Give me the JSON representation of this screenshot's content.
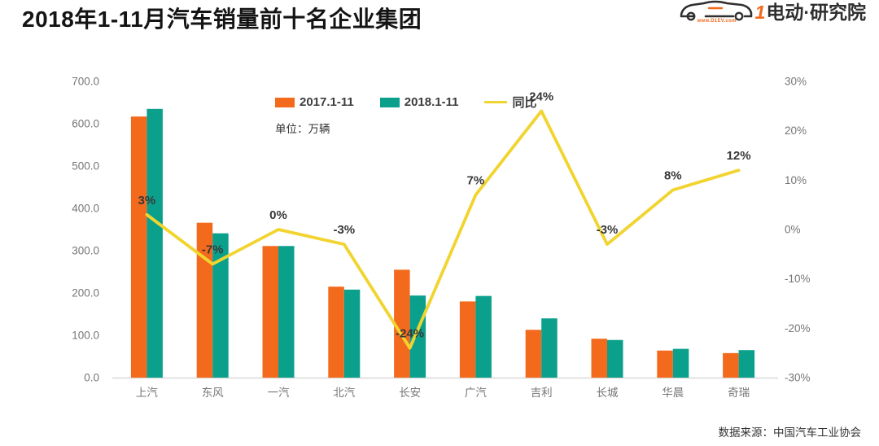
{
  "title": "2018年1-11月汽车销量前十名企业集团",
  "logo": {
    "brand_one": "1",
    "brand_text": "电动",
    "separator": "·",
    "suffix": "研究院",
    "url": "www.D1EV.com"
  },
  "legend": {
    "unit_label": "单位：万辆"
  },
  "source_label": "数据来源：中国汽车工业协会",
  "colors": {
    "orange": "#f36a1d",
    "teal": "#0aa08c",
    "yellow": "#f1d42f",
    "axis_text": "#767676",
    "axis_line": "#d9d9d9",
    "label_text": "#383838"
  },
  "chart_data": {
    "type": "bar+line-combo",
    "title": "2018年1-11月汽车销量前十名企业集团",
    "unit": "万辆",
    "categories": [
      "上汽",
      "东风",
      "一汽",
      "北汽",
      "长安",
      "广汽",
      "吉利",
      "长城",
      "华晨",
      "奇瑞"
    ],
    "series": [
      {
        "name": "2017.1-11",
        "type": "bar",
        "axis": "left",
        "color": "#f36a1d",
        "values": [
          617,
          366,
          311,
          215,
          255,
          180,
          113,
          92,
          64,
          58
        ]
      },
      {
        "name": "2018.1-11",
        "type": "bar",
        "axis": "left",
        "color": "#0aa08c",
        "values": [
          635,
          341,
          311,
          208,
          194,
          193,
          140,
          89,
          68,
          65
        ]
      },
      {
        "name": "同比",
        "type": "line",
        "axis": "right",
        "color": "#f1d42f",
        "values": [
          3,
          -7,
          0,
          -3,
          -24,
          7,
          24,
          -3,
          8,
          12
        ],
        "labels": [
          "3%",
          "-7%",
          "0%",
          "-3%",
          "-24%",
          "7%",
          "24%",
          "-3%",
          "8%",
          "12%"
        ]
      }
    ],
    "y_left": {
      "ticks_top_to_bottom": [
        "700.0",
        "600.0",
        "500.0",
        "400.0",
        "300.0",
        "200.0",
        "100.0",
        "0.0"
      ],
      "min": 0,
      "max": 700
    },
    "y_right": {
      "ticks_top_to_bottom": [
        "30%",
        "20%",
        "10%",
        "0%",
        "-10%",
        "-20%",
        "-30%"
      ],
      "min": -30,
      "max": 30
    },
    "grid": false,
    "legend_position": "top-center"
  }
}
